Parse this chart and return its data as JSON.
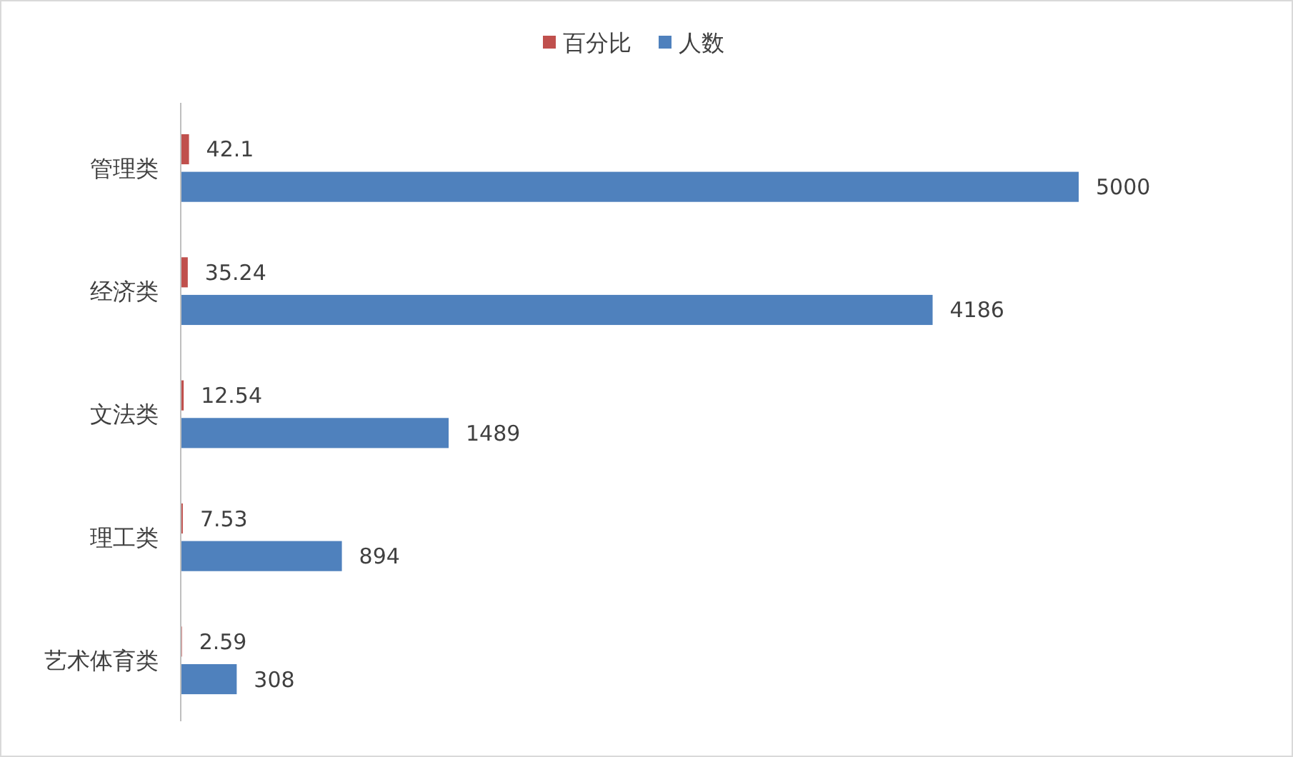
{
  "chart_data": {
    "type": "bar",
    "orientation": "horizontal",
    "categories": [
      "管理类",
      "经济类",
      "文法类",
      "理工类",
      "艺术体育类"
    ],
    "series": [
      {
        "name": "百分比",
        "color": "#c0504d",
        "values": [
          42.1,
          35.24,
          12.54,
          7.53,
          2.59
        ]
      },
      {
        "name": "人数",
        "color": "#4f81bd",
        "values": [
          5000,
          4186,
          1489,
          894,
          308
        ]
      }
    ],
    "data_labels": true,
    "legend": "top"
  }
}
